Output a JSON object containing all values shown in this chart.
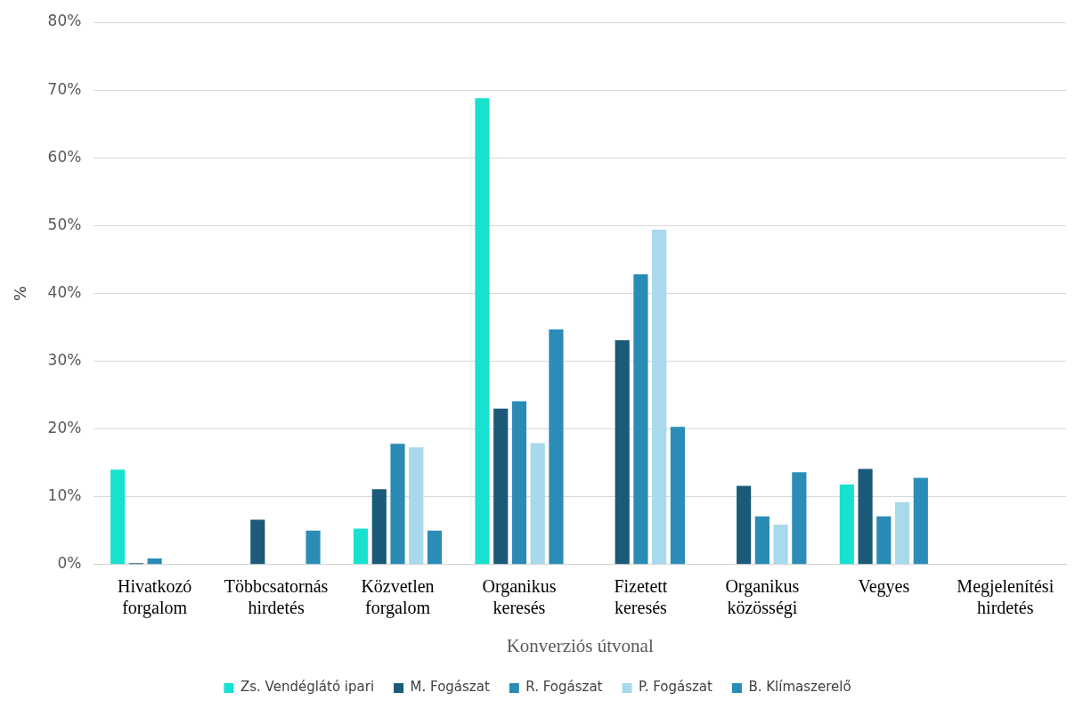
{
  "chart_data": {
    "type": "bar",
    "xlabel": "Konverziós útvonal",
    "ylabel": "%",
    "categories": [
      "Hivatkozó forgalom",
      "Többcsatornás hirdetés",
      "Közvetlen forgalom",
      "Organikus keresés",
      "Fizetett keresés",
      "Organikus közösségi",
      "Vegyes",
      "Megjelenítési hirdetés"
    ],
    "series": [
      {
        "name": "Zs. Vendéglátó ipari",
        "color": "#17e2cf",
        "values": [
          14,
          0,
          5.3,
          68.8,
          0,
          0,
          11.8,
          0
        ]
      },
      {
        "name": "M. Fogászat",
        "color": "#1b5a78",
        "values": [
          0.2,
          6.6,
          11.1,
          23,
          33.1,
          11.6,
          14.1,
          0
        ]
      },
      {
        "name": "R. Fogászat",
        "color": "#2a8bb5",
        "values": [
          0.9,
          0,
          17.8,
          24.1,
          42.8,
          7.1,
          7.1,
          0
        ]
      },
      {
        "name": "P. Fogászat",
        "color": "#a8d9ec",
        "values": [
          0,
          0,
          17.3,
          17.9,
          49.4,
          5.9,
          9.2,
          0
        ]
      },
      {
        "name": "B. Klímaszerelő",
        "color": "#2b8db7",
        "values": [
          0,
          5,
          5,
          34.7,
          20.3,
          13.6,
          12.8,
          0
        ]
      }
    ],
    "ylim": [
      0,
      80
    ],
    "yticks": [
      {
        "value": 0,
        "label": "0%"
      },
      {
        "value": 10,
        "label": "10%"
      },
      {
        "value": 20,
        "label": "20%"
      },
      {
        "value": 30,
        "label": "30%"
      },
      {
        "value": 40,
        "label": "40%"
      },
      {
        "value": 50,
        "label": "50%"
      },
      {
        "value": 60,
        "label": "60%"
      },
      {
        "value": 70,
        "label": "70%"
      },
      {
        "value": 80,
        "label": "80%"
      }
    ],
    "grid": "y",
    "legend": "bottom"
  }
}
